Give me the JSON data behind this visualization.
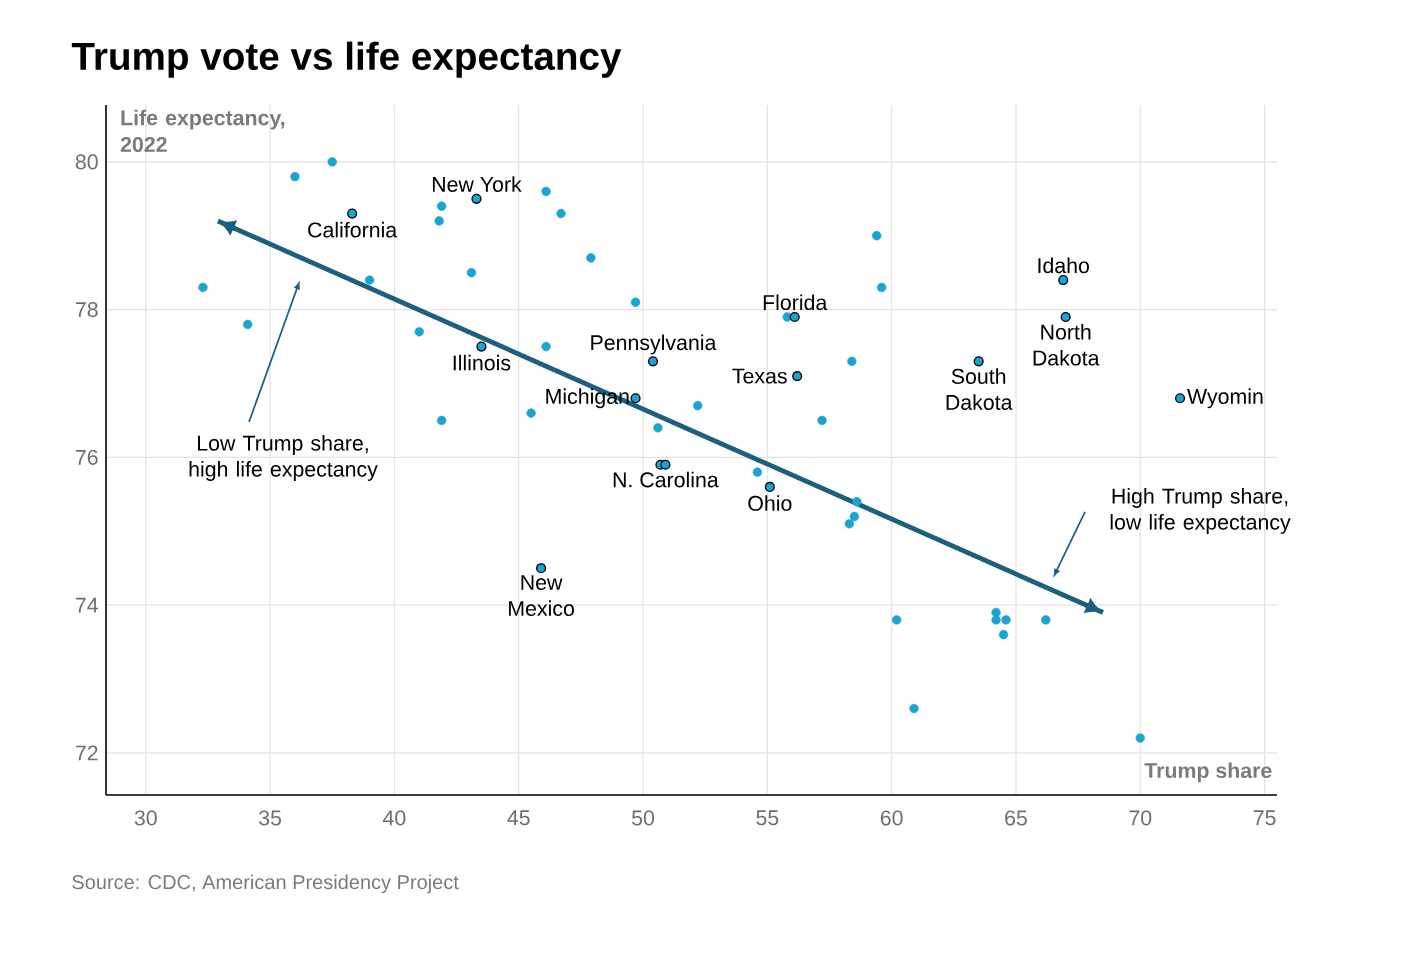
{
  "chart_data": {
    "type": "scatter",
    "title": "Trump vote vs life expectancy",
    "xlabel": "Trump share",
    "ylabel": "Life expectancy, 2022",
    "xlim": [
      28.4,
      75.5
    ],
    "ylim": [
      71.43,
      80.77
    ],
    "xticks": [
      30,
      35,
      40,
      45,
      50,
      55,
      60,
      65,
      70,
      75
    ],
    "yticks": [
      72,
      74,
      76,
      78,
      80
    ],
    "grid": true,
    "series": [
      {
        "marker": "circle",
        "color": "#1ba3d4",
        "x": [
          32.3,
          34.1,
          36.0,
          37.5,
          39.0,
          41.0,
          41.9,
          41.8,
          41.9,
          43.1,
          45.5,
          46.1,
          46.1,
          46.7,
          47.9,
          49.7,
          50.6,
          52.2,
          54.6,
          55.8,
          57.2,
          58.3,
          58.5,
          58.6,
          58.4,
          59.4,
          59.6,
          60.2,
          60.9,
          64.2,
          64.2,
          64.6,
          64.5,
          66.2,
          70.0
        ],
        "values": [
          78.3,
          77.8,
          79.8,
          80.0,
          78.4,
          77.7,
          76.5,
          79.2,
          79.4,
          78.5,
          76.6,
          79.6,
          77.5,
          79.3,
          78.7,
          78.1,
          76.4,
          76.7,
          75.8,
          77.9,
          76.5,
          75.1,
          75.2,
          75.4,
          77.3,
          79.0,
          78.3,
          73.8,
          72.6,
          73.9,
          73.8,
          73.8,
          73.6,
          73.8,
          72.2
        ]
      },
      {
        "marker": "circle",
        "color": "#1ba3d4",
        "x": [
          38.3,
          43.3,
          43.5,
          45.9,
          49.7,
          50.4,
          50.7,
          50.9,
          55.1,
          56.1,
          56.2,
          63.5,
          66.9,
          67.0,
          71.6
        ],
        "values": [
          79.3,
          79.5,
          77.5,
          74.5,
          76.8,
          77.3,
          75.9,
          75.9,
          75.6,
          77.9,
          77.1,
          77.3,
          78.4,
          77.9,
          76.8
        ]
      },
      {
        "type": "line",
        "marker": "none",
        "color": "#1d5f80",
        "x": [
          32.9,
          68.5
        ],
        "values": [
          79.2,
          73.9
        ]
      }
    ],
    "annotations": [
      {
        "text": "California",
        "x": 38.3,
        "y": 79.3
      },
      {
        "text": "New York",
        "x": 43.3,
        "y": 79.5
      },
      {
        "text": "Illinois",
        "x": 43.5,
        "y": 77.5
      },
      {
        "text": "New Mexico",
        "x": 45.9,
        "y": 74.5
      },
      {
        "text": "Michigan",
        "x": 49.7,
        "y": 76.8
      },
      {
        "text": "Pennsylvania",
        "x": 50.4,
        "y": 77.3
      },
      {
        "text": "N. Carolina",
        "x": 50.9,
        "y": 75.9
      },
      {
        "text": "Ohio",
        "x": 55.1,
        "y": 75.6
      },
      {
        "text": "Florida",
        "x": 56.1,
        "y": 77.9
      },
      {
        "text": "Texas",
        "x": 56.2,
        "y": 77.1
      },
      {
        "text": "South Dakota",
        "x": 63.5,
        "y": 77.3
      },
      {
        "text": "Idaho",
        "x": 66.9,
        "y": 78.4
      },
      {
        "text": "North Dakota",
        "x": 67.0,
        "y": 77.9
      },
      {
        "text": "Wyomin",
        "x": 71.6,
        "y": 76.8
      },
      "Low Trump share, high life expectancy",
      "High Trump share, low life expectancy",
      "Source: CDC, American Presidency Project"
    ]
  }
}
